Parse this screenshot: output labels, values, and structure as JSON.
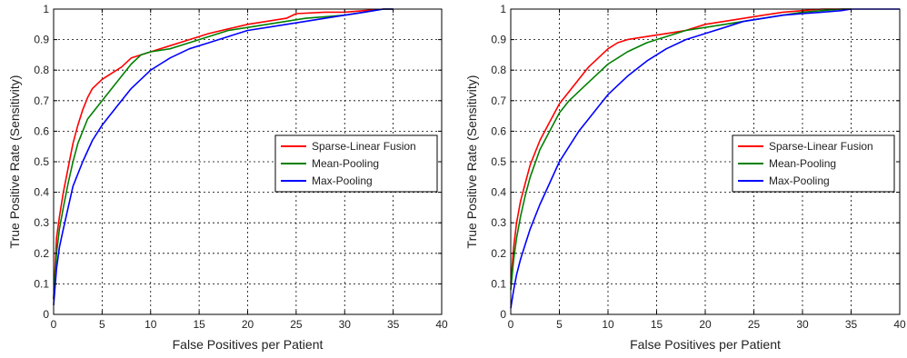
{
  "colors": {
    "red": "#ff0000",
    "green": "#008000",
    "blue": "#0000ff",
    "grid": "#000000",
    "axis": "#000000",
    "background": "#ffffff"
  },
  "chart_data": [
    {
      "type": "line",
      "xlabel": "False Positives per Patient",
      "ylabel": "True Positive Rate (Sensitivity)",
      "xlim": [
        0,
        40
      ],
      "ylim": [
        0,
        1
      ],
      "xticks": [
        0,
        5,
        10,
        15,
        20,
        25,
        30,
        35,
        40
      ],
      "yticks": [
        0,
        0.1,
        0.2,
        0.3,
        0.4,
        0.5,
        0.6,
        0.7,
        0.8,
        0.9,
        1
      ],
      "grid": true,
      "legend_position": "center-right",
      "series": [
        {
          "name": "Sparse-Linear Fusion",
          "color": "red",
          "x": [
            0,
            0.3,
            0.6,
            1,
            1.5,
            2,
            2.5,
            3,
            3.5,
            4,
            5,
            6,
            7,
            8,
            9,
            10,
            12,
            14,
            16,
            18,
            20,
            22,
            24,
            25,
            28,
            30,
            32,
            34,
            35
          ],
          "y": [
            0.05,
            0.25,
            0.32,
            0.4,
            0.48,
            0.56,
            0.62,
            0.67,
            0.71,
            0.74,
            0.77,
            0.79,
            0.81,
            0.84,
            0.85,
            0.86,
            0.88,
            0.9,
            0.92,
            0.935,
            0.95,
            0.96,
            0.97,
            0.985,
            0.99,
            0.99,
            0.995,
            1.0,
            1.0
          ]
        },
        {
          "name": "Mean-Pooling",
          "color": "green",
          "x": [
            0,
            0.3,
            0.6,
            1,
            1.5,
            2,
            2.5,
            3,
            3.5,
            4,
            5,
            6,
            7,
            8,
            9,
            10,
            12,
            14,
            16,
            18,
            20,
            22,
            24,
            26,
            28,
            30,
            32,
            34,
            35
          ],
          "y": [
            0.05,
            0.2,
            0.28,
            0.35,
            0.43,
            0.5,
            0.56,
            0.6,
            0.64,
            0.66,
            0.7,
            0.74,
            0.78,
            0.82,
            0.85,
            0.86,
            0.87,
            0.89,
            0.91,
            0.93,
            0.94,
            0.95,
            0.96,
            0.97,
            0.975,
            0.98,
            0.99,
            1.0,
            1.0
          ]
        },
        {
          "name": "Max-Pooling",
          "color": "blue",
          "x": [
            0,
            0.3,
            0.6,
            1,
            1.5,
            2,
            3,
            4,
            5,
            6,
            7,
            8,
            9,
            10,
            11,
            12,
            14,
            16,
            18,
            20,
            22,
            24,
            26,
            28,
            30,
            32,
            34,
            35
          ],
          "y": [
            0.03,
            0.15,
            0.22,
            0.28,
            0.35,
            0.42,
            0.5,
            0.57,
            0.62,
            0.66,
            0.7,
            0.74,
            0.77,
            0.8,
            0.82,
            0.84,
            0.87,
            0.89,
            0.91,
            0.93,
            0.94,
            0.95,
            0.96,
            0.97,
            0.98,
            0.99,
            1.0,
            1.0
          ]
        }
      ]
    },
    {
      "type": "line",
      "xlabel": "False Positives per Patient",
      "ylabel": "True Positive Rate (Sensitivity)",
      "xlim": [
        0,
        40
      ],
      "ylim": [
        0,
        1
      ],
      "xticks": [
        0,
        5,
        10,
        15,
        20,
        25,
        30,
        35,
        40
      ],
      "yticks": [
        0,
        0.1,
        0.2,
        0.3,
        0.4,
        0.5,
        0.6,
        0.7,
        0.8,
        0.9,
        1
      ],
      "grid": true,
      "legend_position": "center-right",
      "series": [
        {
          "name": "Sparse-Linear Fusion",
          "color": "red",
          "x": [
            0,
            0.3,
            0.6,
            1,
            1.5,
            2,
            3,
            4,
            5,
            6,
            7,
            8,
            9,
            10,
            11,
            12,
            14,
            16,
            18,
            20,
            22,
            24,
            26,
            28,
            30,
            32,
            34,
            35
          ],
          "y": [
            0.1,
            0.22,
            0.3,
            0.37,
            0.43,
            0.49,
            0.57,
            0.63,
            0.69,
            0.73,
            0.77,
            0.81,
            0.84,
            0.87,
            0.89,
            0.9,
            0.91,
            0.92,
            0.93,
            0.95,
            0.96,
            0.97,
            0.98,
            0.99,
            0.995,
            1.0,
            1.0,
            1.0
          ]
        },
        {
          "name": "Mean-Pooling",
          "color": "green",
          "x": [
            0,
            0.3,
            0.6,
            1,
            1.5,
            2,
            3,
            4,
            5,
            6,
            7,
            8,
            9,
            10,
            11,
            12,
            14,
            16,
            18,
            20,
            22,
            24,
            26,
            28,
            30,
            32,
            34,
            35
          ],
          "y": [
            0.08,
            0.18,
            0.25,
            0.32,
            0.39,
            0.45,
            0.54,
            0.6,
            0.66,
            0.7,
            0.73,
            0.76,
            0.79,
            0.82,
            0.84,
            0.86,
            0.89,
            0.91,
            0.93,
            0.94,
            0.95,
            0.96,
            0.97,
            0.98,
            0.99,
            0.995,
            1.0,
            1.0
          ]
        },
        {
          "name": "Max-Pooling",
          "color": "blue",
          "x": [
            0,
            0.3,
            0.6,
            1,
            1.5,
            2,
            3,
            4,
            5,
            6,
            7,
            8,
            9,
            10,
            12,
            14,
            16,
            18,
            20,
            22,
            24,
            26,
            28,
            30,
            32,
            34,
            35,
            40
          ],
          "y": [
            0.02,
            0.08,
            0.13,
            0.18,
            0.23,
            0.28,
            0.36,
            0.43,
            0.5,
            0.55,
            0.6,
            0.64,
            0.68,
            0.72,
            0.78,
            0.83,
            0.87,
            0.9,
            0.92,
            0.94,
            0.96,
            0.97,
            0.98,
            0.985,
            0.99,
            0.995,
            1.0,
            1.0
          ]
        }
      ]
    }
  ]
}
